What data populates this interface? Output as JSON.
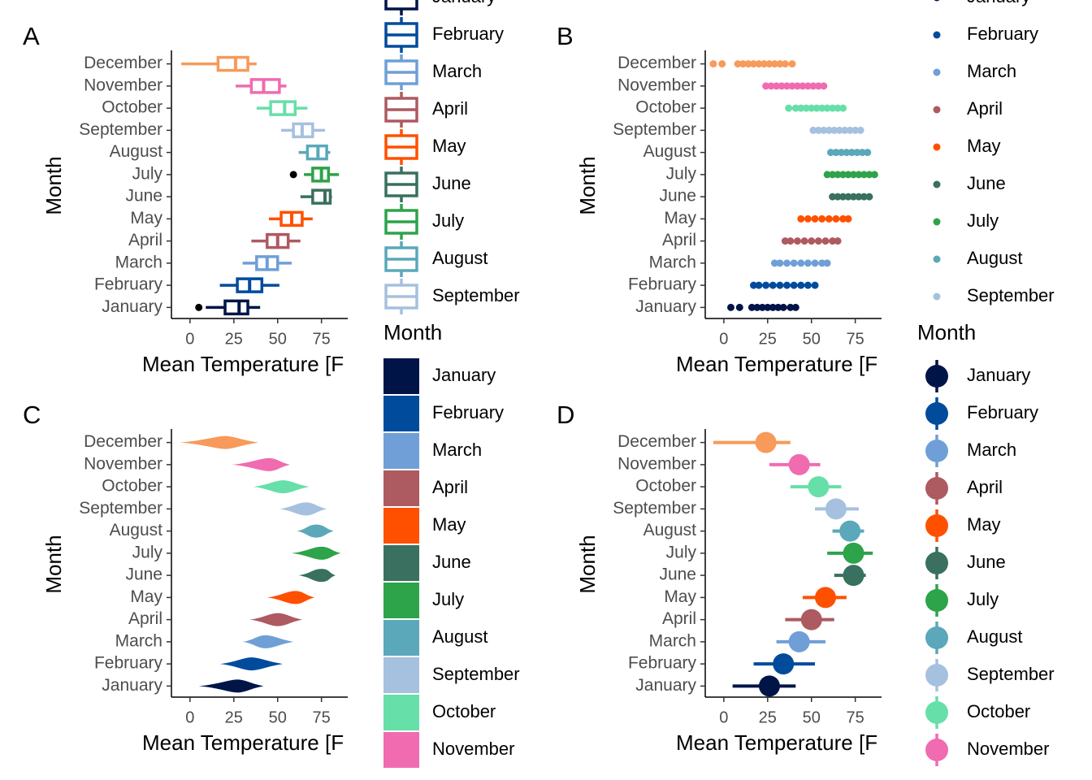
{
  "chart_data": [
    {
      "type": "boxplot",
      "panel_label": "A",
      "x_label": "Mean Temperature [F",
      "y_label": "Month",
      "xlim": [
        -10.6,
        90
      ],
      "xticks": [
        0,
        25,
        50,
        75
      ],
      "legend": {
        "entries": [
          "January",
          "February",
          "March",
          "April",
          "May",
          "June",
          "July",
          "August",
          "September"
        ]
      },
      "series": [
        {
          "name": "January",
          "color": "#001448",
          "whisker_low": 9,
          "q1": 20,
          "median": 28,
          "q3": 33,
          "whisker_high": 40,
          "outliers": [
            5
          ]
        },
        {
          "name": "February",
          "color": "#004b9c",
          "whisker_low": 17,
          "q1": 27,
          "median": 34,
          "q3": 41,
          "whisker_high": 51
        },
        {
          "name": "March",
          "color": "#6f9fd6",
          "whisker_low": 30,
          "q1": 38,
          "median": 44,
          "q3": 50,
          "whisker_high": 58
        },
        {
          "name": "April",
          "color": "#ad5a60",
          "whisker_low": 35,
          "q1": 44,
          "median": 50,
          "q3": 56,
          "whisker_high": 63
        },
        {
          "name": "May",
          "color": "#ff5000",
          "whisker_low": 45,
          "q1": 52,
          "median": 58,
          "q3": 64,
          "whisker_high": 70
        },
        {
          "name": "June",
          "color": "#39705f",
          "whisker_low": 63,
          "q1": 70,
          "median": 77,
          "q3": 80,
          "whisker_high": 81
        },
        {
          "name": "July",
          "color": "#2da34a",
          "whisker_low": 65,
          "q1": 70,
          "median": 75,
          "q3": 79,
          "whisker_high": 85,
          "outliers": [
            59
          ]
        },
        {
          "name": "August",
          "color": "#5aa8ba",
          "whisker_low": 62,
          "q1": 67,
          "median": 73,
          "q3": 78,
          "whisker_high": 80
        },
        {
          "name": "September",
          "color": "#a6c0df",
          "whisker_low": 52,
          "q1": 59,
          "median": 64,
          "q3": 70,
          "whisker_high": 77
        },
        {
          "name": "October",
          "color": "#67dfa8",
          "whisker_low": 38,
          "q1": 46,
          "median": 54,
          "q3": 60,
          "whisker_high": 67
        },
        {
          "name": "November",
          "color": "#f06bb0",
          "whisker_low": 26,
          "q1": 35,
          "median": 42,
          "q3": 51,
          "whisker_high": 55
        },
        {
          "name": "December",
          "color": "#f79a5a",
          "whisker_low": -5,
          "q1": 16,
          "median": 26,
          "q3": 33,
          "whisker_high": 38
        }
      ]
    },
    {
      "type": "strip",
      "panel_label": "B",
      "x_label": "Mean Temperature [F",
      "y_label": "Month",
      "xlim": [
        -10.6,
        90
      ],
      "xticks": [
        0,
        25,
        50,
        75
      ],
      "legend": {
        "entries": [
          "January",
          "February",
          "March",
          "April",
          "May",
          "June",
          "July",
          "August",
          "September"
        ]
      },
      "series": [
        {
          "name": "January",
          "color": "#001448",
          "values": [
            4,
            9,
            16,
            19,
            22,
            25,
            28,
            31,
            34,
            38,
            41
          ]
        },
        {
          "name": "February",
          "color": "#004b9c",
          "values": [
            17,
            20,
            24,
            28,
            32,
            36,
            40,
            44,
            48,
            52
          ]
        },
        {
          "name": "March",
          "color": "#6f9fd6",
          "values": [
            29,
            32,
            36,
            40,
            44,
            48,
            52,
            56,
            59
          ]
        },
        {
          "name": "April",
          "color": "#ad5a60",
          "values": [
            35,
            38,
            42,
            46,
            50,
            54,
            58,
            62,
            65
          ]
        },
        {
          "name": "May",
          "color": "#ff5000",
          "values": [
            44,
            48,
            52,
            56,
            60,
            64,
            68,
            71
          ]
        },
        {
          "name": "June",
          "color": "#39705f",
          "values": [
            62,
            65,
            68,
            71,
            74,
            77,
            80,
            83
          ]
        },
        {
          "name": "July",
          "color": "#2da34a",
          "values": [
            59,
            62,
            65,
            68,
            71,
            74,
            77,
            80,
            83,
            86
          ]
        },
        {
          "name": "August",
          "color": "#5aa8ba",
          "values": [
            61,
            64,
            67,
            70,
            73,
            76,
            79,
            82
          ]
        },
        {
          "name": "September",
          "color": "#a6c0df",
          "values": [
            51,
            54,
            57,
            60,
            63,
            66,
            69,
            72,
            75,
            78
          ]
        },
        {
          "name": "October",
          "color": "#67dfa8",
          "values": [
            37,
            41,
            44,
            47,
            50,
            53,
            56,
            59,
            62,
            65,
            68
          ]
        },
        {
          "name": "November",
          "color": "#f06bb0",
          "values": [
            24,
            27,
            30,
            33,
            36,
            39,
            42,
            45,
            48,
            51,
            54,
            57
          ]
        },
        {
          "name": "December",
          "color": "#f79a5a",
          "values": [
            -6,
            -1,
            8,
            11,
            14,
            17,
            20,
            23,
            26,
            29,
            32,
            35,
            39
          ]
        }
      ]
    },
    {
      "type": "violin",
      "panel_label": "C",
      "x_label": "Mean Temperature [F",
      "y_label": "Month",
      "xlim": [
        -10.6,
        90
      ],
      "xticks": [
        0,
        25,
        50,
        75
      ],
      "legend": {
        "title": "Month",
        "entries": [
          "January",
          "February",
          "March",
          "April",
          "May",
          "June",
          "July",
          "August",
          "September",
          "October",
          "November"
        ]
      },
      "series": [
        {
          "name": "January",
          "color": "#001448",
          "min": 5,
          "peak": 27,
          "max": 42
        },
        {
          "name": "February",
          "color": "#004b9c",
          "min": 17,
          "peak": 35,
          "max": 53
        },
        {
          "name": "March",
          "color": "#6f9fd6",
          "min": 30,
          "peak": 43,
          "max": 59
        },
        {
          "name": "April",
          "color": "#ad5a60",
          "min": 34,
          "peak": 50,
          "max": 64
        },
        {
          "name": "May",
          "color": "#ff5000",
          "min": 44,
          "peak": 60,
          "max": 71
        },
        {
          "name": "June",
          "color": "#39705f",
          "min": 62,
          "peak": 75,
          "max": 83
        },
        {
          "name": "July",
          "color": "#2da34a",
          "min": 58,
          "peak": 75,
          "max": 86
        },
        {
          "name": "August",
          "color": "#5aa8ba",
          "min": 61,
          "peak": 72,
          "max": 82
        },
        {
          "name": "September",
          "color": "#a6c0df",
          "min": 51,
          "peak": 66,
          "max": 78
        },
        {
          "name": "October",
          "color": "#67dfa8",
          "min": 36,
          "peak": 53,
          "max": 68
        },
        {
          "name": "November",
          "color": "#f06bb0",
          "min": 24,
          "peak": 45,
          "max": 57
        },
        {
          "name": "December",
          "color": "#f79a5a",
          "min": -6,
          "peak": 20,
          "max": 39
        }
      ]
    },
    {
      "type": "pointrange",
      "panel_label": "D",
      "x_label": "Mean Temperature [F",
      "y_label": "Month",
      "xlim": [
        -10.6,
        90
      ],
      "xticks": [
        0,
        25,
        50,
        75
      ],
      "legend": {
        "title": "Month",
        "entries": [
          "January",
          "February",
          "March",
          "April",
          "May",
          "June",
          "July",
          "August",
          "September",
          "October",
          "November"
        ]
      },
      "series": [
        {
          "name": "January",
          "color": "#001448",
          "mean": 26,
          "low": 5,
          "high": 41
        },
        {
          "name": "February",
          "color": "#004b9c",
          "mean": 34,
          "low": 17,
          "high": 52
        },
        {
          "name": "March",
          "color": "#6f9fd6",
          "mean": 43,
          "low": 30,
          "high": 58
        },
        {
          "name": "April",
          "color": "#ad5a60",
          "mean": 50,
          "low": 35,
          "high": 63
        },
        {
          "name": "May",
          "color": "#ff5000",
          "mean": 58,
          "low": 45,
          "high": 70
        },
        {
          "name": "June",
          "color": "#39705f",
          "mean": 74,
          "low": 63,
          "high": 81
        },
        {
          "name": "July",
          "color": "#2da34a",
          "mean": 74,
          "low": 59,
          "high": 85
        },
        {
          "name": "August",
          "color": "#5aa8ba",
          "mean": 72,
          "low": 62,
          "high": 80
        },
        {
          "name": "September",
          "color": "#a6c0df",
          "mean": 64,
          "low": 52,
          "high": 77
        },
        {
          "name": "October",
          "color": "#67dfa8",
          "mean": 54,
          "low": 38,
          "high": 67
        },
        {
          "name": "November",
          "color": "#f06bb0",
          "mean": 43,
          "low": 26,
          "high": 55
        },
        {
          "name": "December",
          "color": "#f79a5a",
          "mean": 24,
          "low": -6,
          "high": 38
        }
      ]
    }
  ]
}
